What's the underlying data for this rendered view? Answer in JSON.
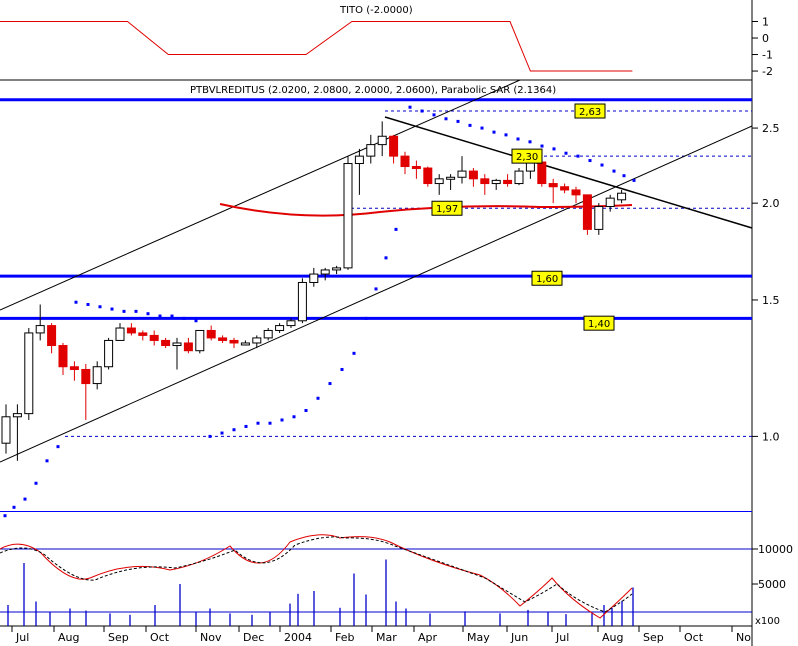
{
  "chart_data": {
    "type": "candlestick",
    "title": "PTBVLREDITUS (2.0200, 2.0800, 2.0000, 2.0600), Parabolic SAR (2.1364)",
    "indicator_title": "TITO (-2.0000)",
    "x_labels": [
      "Jul",
      "Aug",
      "Sep",
      "Oct",
      "Nov",
      "Dec",
      "2004",
      "Feb",
      "Mar",
      "Apr",
      "May",
      "Jun",
      "Jul",
      "Aug",
      "Sep",
      "Oct",
      "No"
    ],
    "price_axis": {
      "ticks": [
        "2.5",
        "2.0",
        "1.5",
        "1.0"
      ],
      "scale": "log",
      "range": [
        0.78,
        2.75
      ]
    },
    "indicator_axis": {
      "ticks": [
        "1",
        "0",
        "-1",
        "-2"
      ],
      "range": [
        -2.3,
        2.0
      ]
    },
    "volume_axis": {
      "ticks": [
        "10000",
        "5000"
      ],
      "unit": "x100"
    },
    "level_labels": [
      {
        "text": "2,63",
        "value": 2.63
      },
      {
        "text": "2,30",
        "value": 2.3
      },
      {
        "text": "1,97",
        "value": 1.97
      },
      {
        "text": "1,60",
        "value": 1.6
      },
      {
        "text": "1,40",
        "value": 1.4
      }
    ],
    "support_resistance": [
      2.72,
      1.61,
      1.42,
      0.8
    ],
    "indicator_steps": [
      {
        "from": 0,
        "to": 25,
        "value": 1.0
      },
      {
        "from": 33,
        "to": 60,
        "value": -1.0
      },
      {
        "from": 69,
        "to": 100,
        "value": 1.0
      },
      {
        "from": 104,
        "to": 124,
        "value": -2.0
      }
    ],
    "colors": {
      "bear": "#e00000",
      "bull": "#ffffff",
      "sar": "#0000ff",
      "level": "#0000ff",
      "moving_average": "#e00000"
    }
  }
}
